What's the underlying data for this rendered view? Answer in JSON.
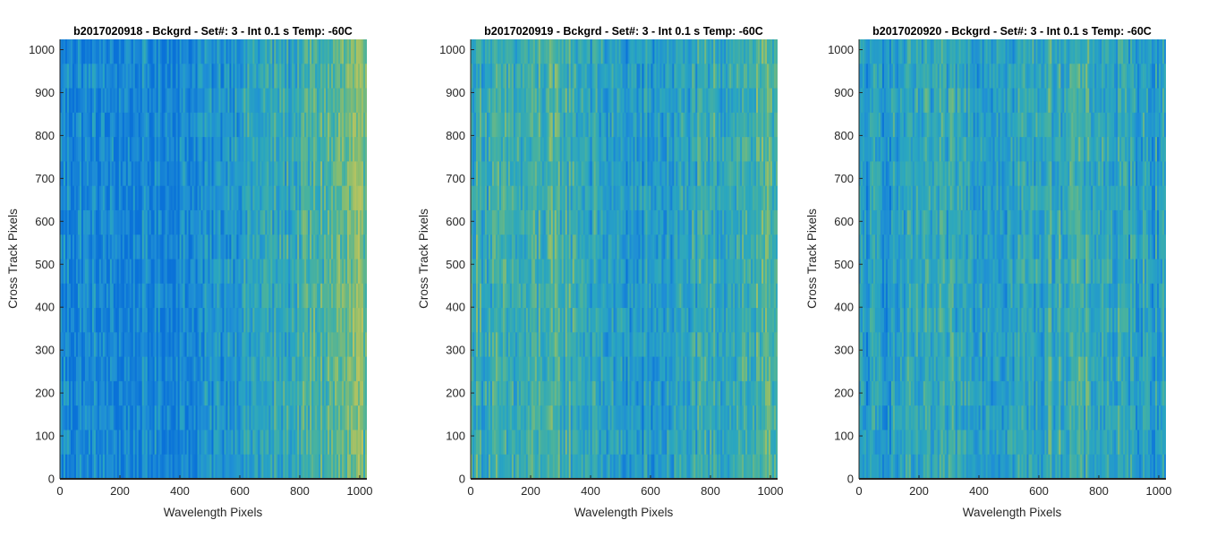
{
  "chart_data": [
    {
      "type": "heatmap",
      "title": "b2017020918 - Bckgrd - Set#: 3 - Int 0.1 s Temp: -60C",
      "xlabel": "Wavelength Pixels",
      "ylabel": "Cross Track Pixels",
      "xlim": [
        0,
        1024
      ],
      "ylim": [
        0,
        1024
      ],
      "xticks": [
        0,
        200,
        400,
        600,
        800,
        1000
      ],
      "yticks": [
        0,
        100,
        200,
        300,
        400,
        500,
        600,
        700,
        800,
        900,
        1000
      ],
      "colormap": [
        "#0a72d8",
        "#1f8fd5",
        "#2aa6c0",
        "#49b29e",
        "#8bbd6e",
        "#b8c460"
      ],
      "column_level_profile": [
        0.18,
        0.14,
        0.12,
        0.13,
        0.14,
        0.16,
        0.22,
        0.35,
        0.4,
        0.45,
        0.55,
        0.65,
        0.72
      ]
    },
    {
      "type": "heatmap",
      "title": "b2017020919 - Bckgrd - Set#: 3 - Int 0.1 s Temp: -60C",
      "xlabel": "Wavelength Pixels",
      "ylabel": "Cross Track Pixels",
      "xlim": [
        0,
        1024
      ],
      "ylim": [
        0,
        1024
      ],
      "xticks": [
        0,
        200,
        400,
        600,
        800,
        1000
      ],
      "yticks": [
        0,
        100,
        200,
        300,
        400,
        500,
        600,
        700,
        800,
        900,
        1000
      ],
      "colormap": [
        "#0a72d8",
        "#1f8fd5",
        "#2aa6c0",
        "#49b29e",
        "#8bbd6e",
        "#b8c460"
      ],
      "column_level_profile": [
        0.5,
        0.46,
        0.48,
        0.52,
        0.5,
        0.38,
        0.3,
        0.28,
        0.35,
        0.42,
        0.48,
        0.52,
        0.55
      ]
    },
    {
      "type": "heatmap",
      "title": "b2017020920 - Bckgrd - Set#: 3 - Int 0.1 s Temp: -60C",
      "xlabel": "Wavelength Pixels",
      "ylabel": "Cross Track Pixels",
      "xlim": [
        0,
        1024
      ],
      "ylim": [
        0,
        1024
      ],
      "xticks": [
        0,
        200,
        400,
        600,
        800,
        1000
      ],
      "yticks": [
        0,
        100,
        200,
        300,
        400,
        500,
        600,
        700,
        800,
        900,
        1000
      ],
      "colormap": [
        "#0a72d8",
        "#1f8fd5",
        "#2aa6c0",
        "#49b29e",
        "#8bbd6e",
        "#b8c460"
      ],
      "column_level_profile": [
        0.3,
        0.33,
        0.36,
        0.4,
        0.42,
        0.4,
        0.38,
        0.42,
        0.5,
        0.45,
        0.4,
        0.38,
        0.36
      ]
    }
  ]
}
